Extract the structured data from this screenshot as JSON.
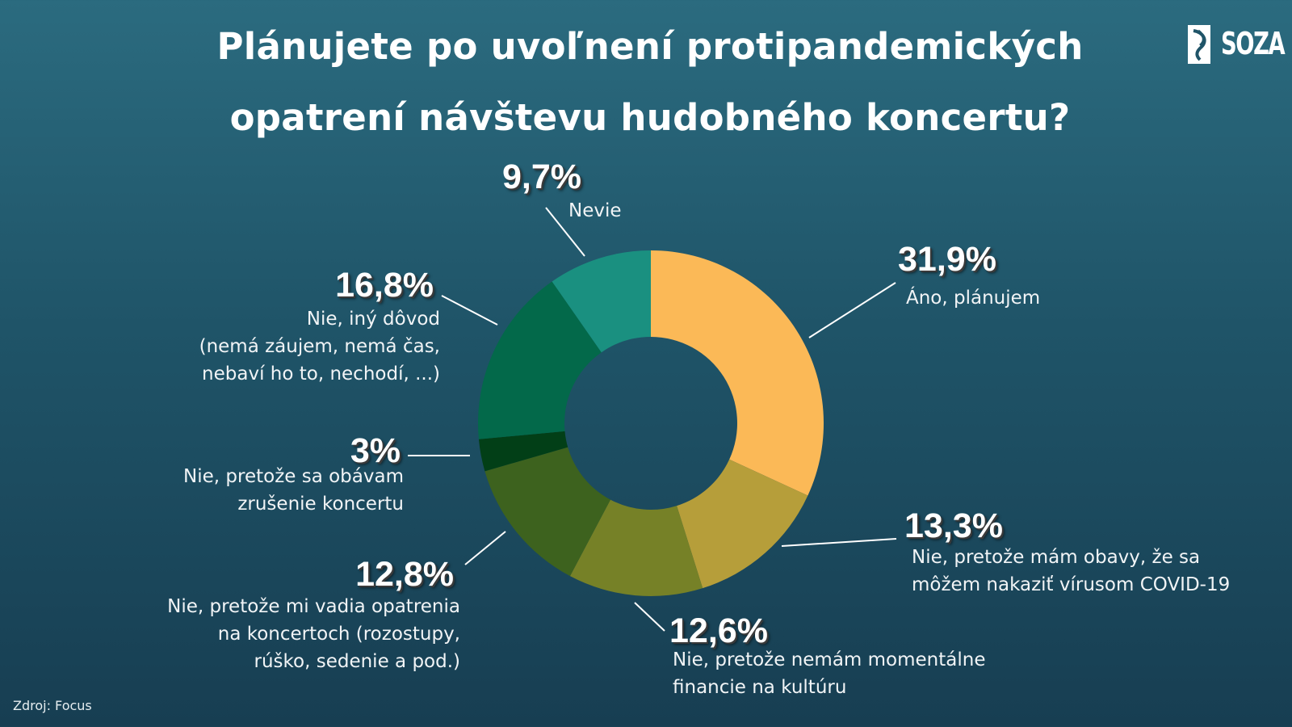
{
  "title": {
    "line1": "Plánujete po uvoľnení protipandemických",
    "line2": "opatrení návštevu hudobného koncertu?"
  },
  "logo": {
    "text": "SOZA"
  },
  "source": "Zdroj: Focus",
  "chart_data": {
    "type": "pie",
    "donut": true,
    "title": "Plánujete po uvoľnení protipandemických opatrení návštevu hudobného koncertu?",
    "unit": "%",
    "slices": [
      {
        "value": 31.9,
        "value_label": "31,9%",
        "label": "Áno, plánujem",
        "color": "#fbb957"
      },
      {
        "value": 13.3,
        "value_label": "13,3%",
        "label": "Nie, pretože mám obavy, že sa\nmôžem nakaziť vírusom COVID-19",
        "color": "#b69e3a"
      },
      {
        "value": 12.6,
        "value_label": "12,6%",
        "label": "Nie, pretože nemám momentálne\nfinancie na kultúru",
        "color": "#768127"
      },
      {
        "value": 12.8,
        "value_label": "12,8%",
        "label": "Nie, pretože mi vadia opatrenia\nna koncertoch (rozostupy,\nrúško, sedenie a pod.)",
        "color": "#3d621e"
      },
      {
        "value": 3,
        "value_label": "3%",
        "label": "Nie, pretože sa obávam\nzrušenie koncertu",
        "color": "#023f17"
      },
      {
        "value": 16.8,
        "value_label": "16,8%",
        "label": "Nie, iný dôvod\n(nemá záujem, nemá čas,\nnebaví ho to, nechodí, ...)",
        "color": "#03694a"
      },
      {
        "value": 9.7,
        "value_label": "9,7%",
        "label": "Nevie",
        "color": "#1a9080"
      }
    ]
  }
}
